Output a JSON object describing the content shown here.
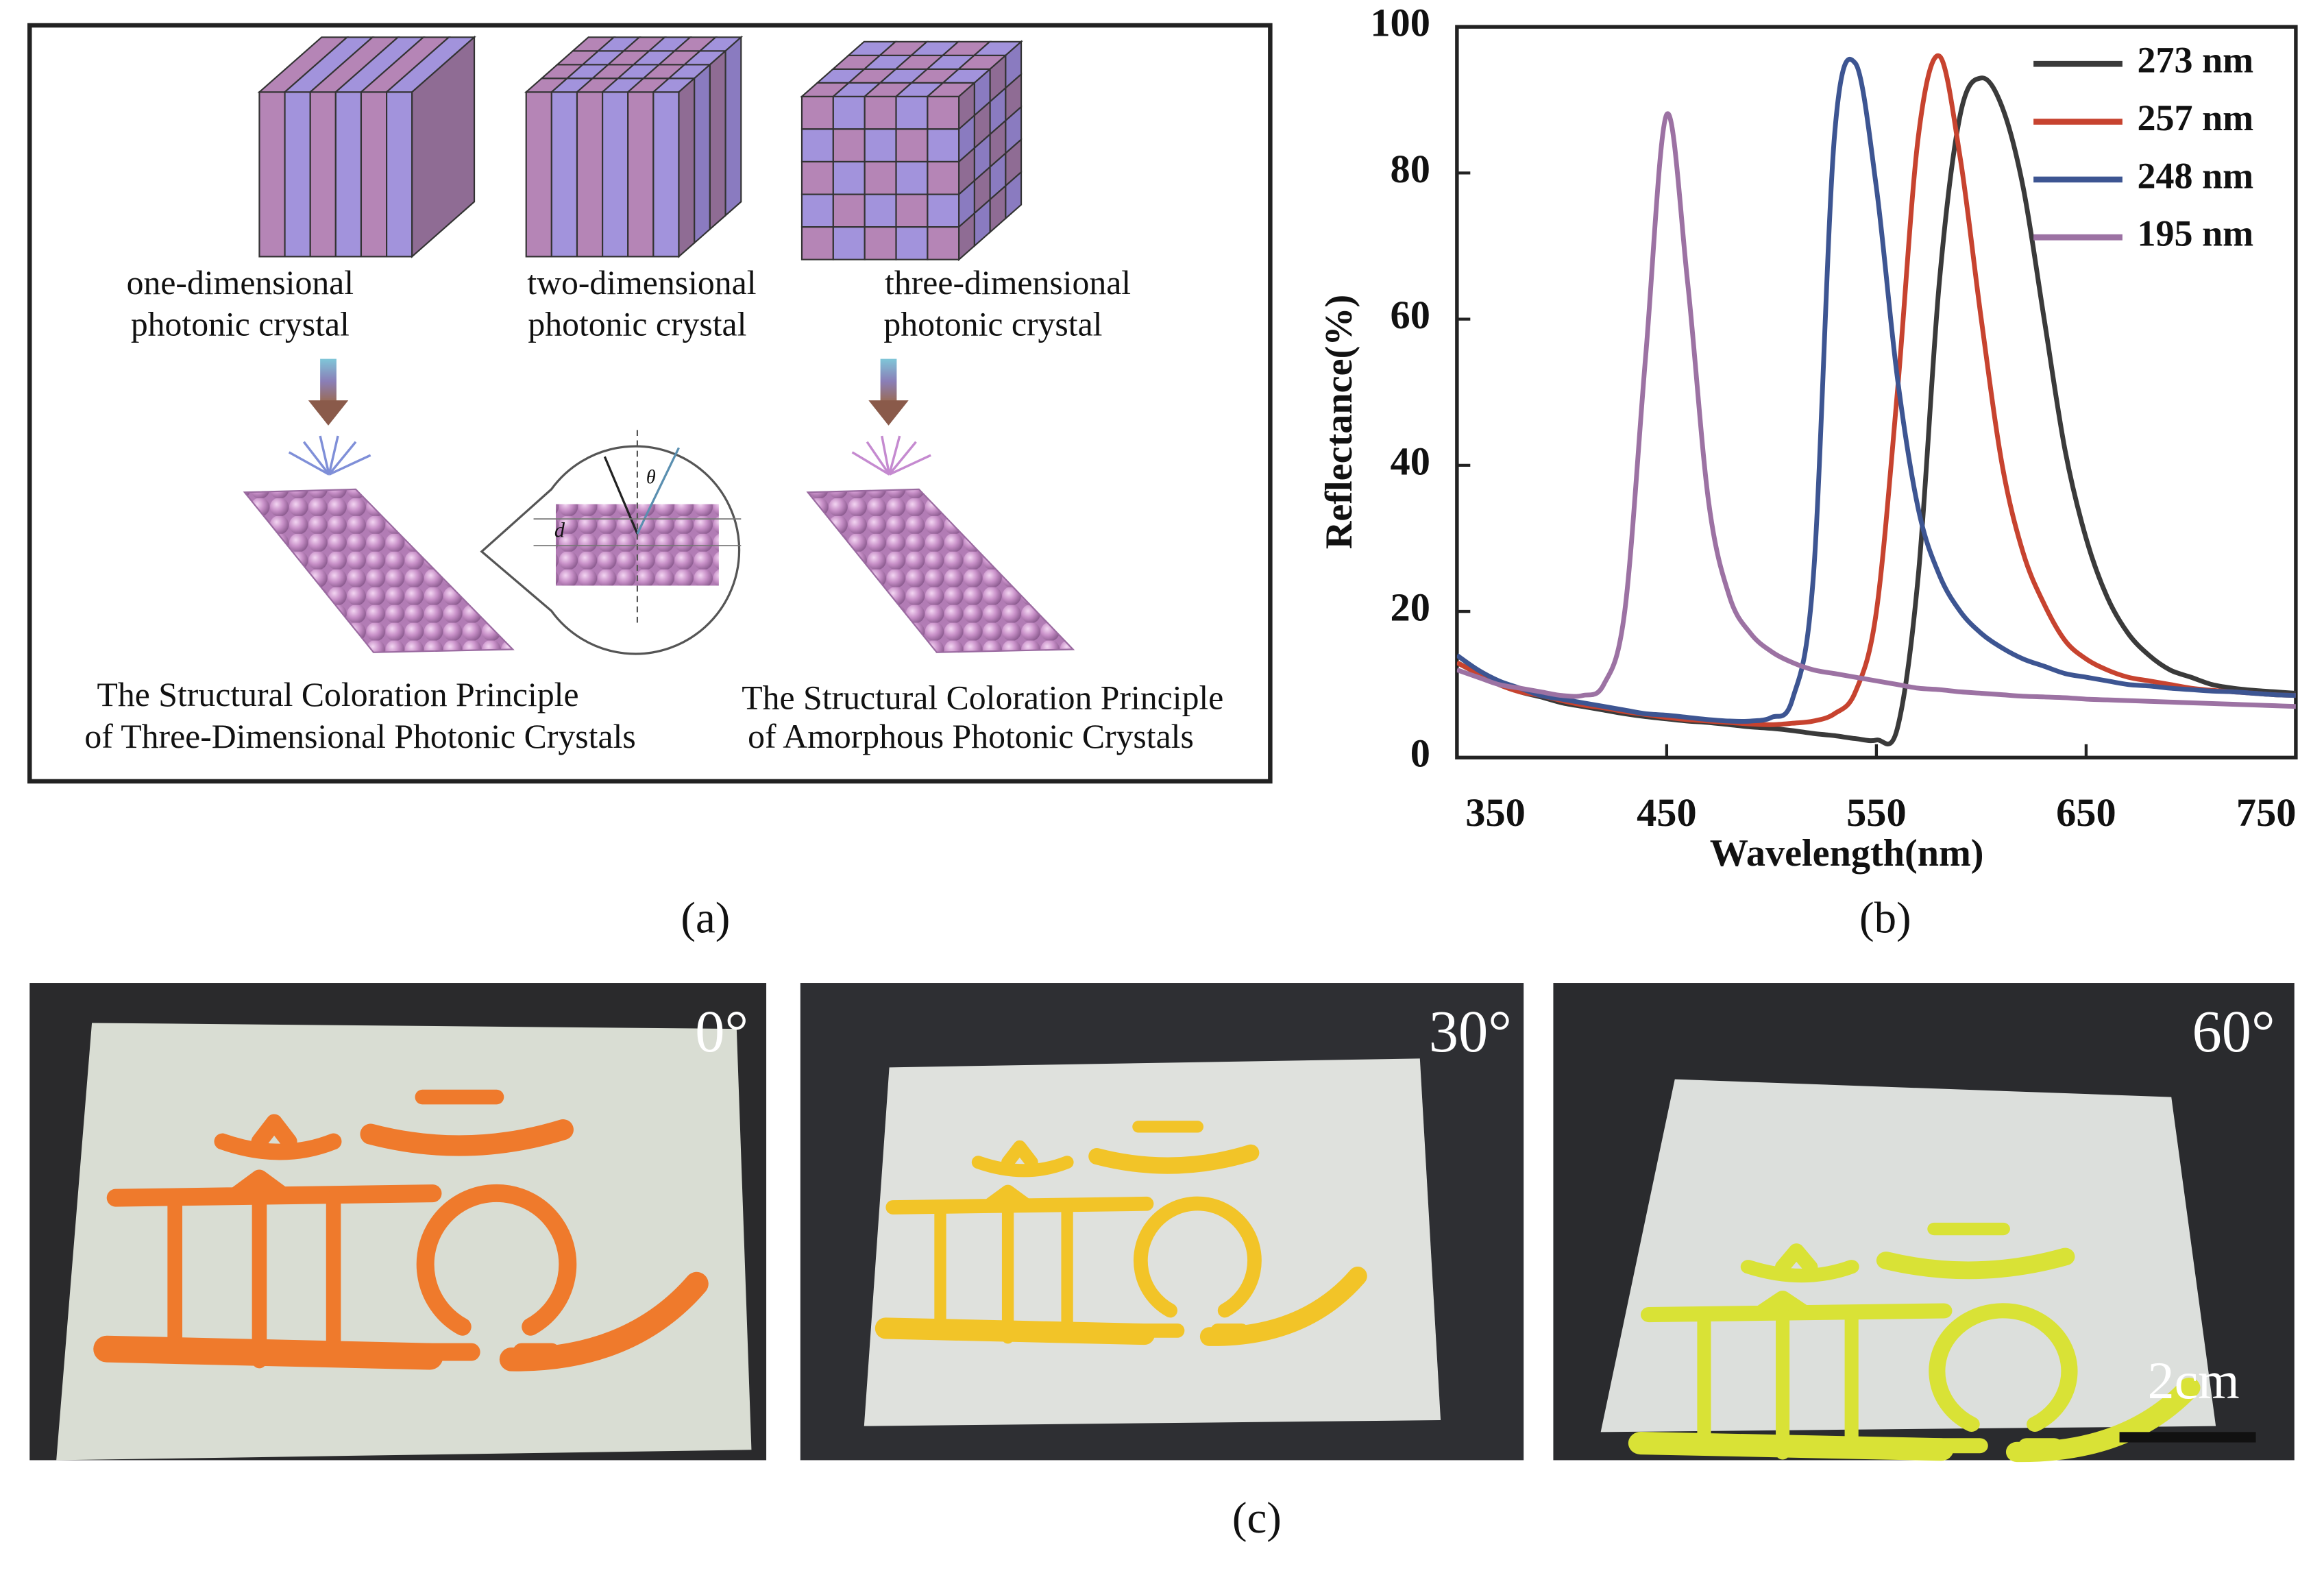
{
  "panel_a": {
    "crystal_labels": [
      [
        "one-dimensional",
        "photonic crystal"
      ],
      [
        "two-dimensional",
        "photonic crystal"
      ],
      [
        "three-dimensional",
        "photonic crystal"
      ]
    ],
    "inset_labels": [
      "d",
      "θ"
    ],
    "principles": [
      [
        "The Structural Coloration Principle",
        "of Three-Dimensional Photonic Crystals"
      ],
      [
        "The Structural Coloration Principle",
        "of Amorphous Photonic Crystals"
      ]
    ]
  },
  "chart_data": {
    "type": "line",
    "xlabel": "Wavelength(nm)",
    "ylabel": "Reflectance(%)",
    "x": [
      350,
      360,
      370,
      380,
      390,
      400,
      410,
      420,
      430,
      440,
      450,
      460,
      470,
      480,
      490,
      500,
      510,
      520,
      530,
      540,
      550,
      560,
      570,
      580,
      590,
      600,
      610,
      620,
      630,
      640,
      650,
      660,
      670,
      680,
      690,
      700,
      710,
      720,
      730,
      740,
      750
    ],
    "series": [
      {
        "name": "273 nm",
        "color": "#3a3a3a",
        "values": [
          13,
          11.5,
          10,
          9,
          8.3,
          7.5,
          7,
          6.5,
          6,
          5.6,
          5.3,
          5,
          4.8,
          4.5,
          4.2,
          4,
          3.7,
          3.3,
          3,
          2.6,
          2.4,
          4,
          25,
          65,
          88,
          93,
          89,
          78,
          60,
          42,
          30,
          22,
          17,
          14,
          12,
          11,
          10,
          9.5,
          9.2,
          9,
          8.8
        ]
      },
      {
        "name": "257 nm",
        "color": "#c7432f",
        "values": [
          13,
          11.5,
          10,
          9,
          8.5,
          7.8,
          7.2,
          6.8,
          6.3,
          5.9,
          5.5,
          5.2,
          5,
          4.8,
          4.6,
          4.5,
          4.7,
          5,
          6,
          9,
          20,
          50,
          85,
          96,
          82,
          60,
          40,
          28,
          21,
          16,
          13.5,
          12,
          11,
          10.5,
          10,
          9.5,
          9.2,
          9,
          8.8,
          8.6,
          8.5
        ]
      },
      {
        "name": "248 nm",
        "color": "#3d5592",
        "values": [
          14,
          12,
          10.5,
          9.5,
          8.5,
          8,
          7.5,
          7,
          6.5,
          6,
          5.8,
          5.5,
          5.2,
          5,
          5,
          5.5,
          8,
          25,
          85,
          95,
          78,
          52,
          34,
          25,
          20,
          17,
          15,
          13.5,
          12.5,
          11.5,
          11,
          10.5,
          10,
          9.8,
          9.5,
          9.3,
          9.1,
          9,
          8.8,
          8.6,
          8.5
        ]
      },
      {
        "name": "195 nm",
        "color": "#9c72a3",
        "values": [
          12,
          11,
          10,
          9.5,
          9,
          8.5,
          8.5,
          10,
          20,
          55,
          88,
          65,
          35,
          22,
          17,
          14.5,
          13,
          12,
          11.5,
          11,
          10.5,
          10,
          9.5,
          9.3,
          9,
          8.8,
          8.6,
          8.4,
          8.3,
          8.2,
          8,
          7.9,
          7.8,
          7.7,
          7.6,
          7.5,
          7.4,
          7.3,
          7.2,
          7.1,
          7
        ]
      }
    ],
    "xlim": [
      350,
      750
    ],
    "xticks": [
      350,
      450,
      550,
      650,
      750
    ],
    "ylim": [
      0,
      100
    ],
    "yticks": [
      0,
      20,
      40,
      60,
      80,
      100
    ],
    "legend": "upper right"
  },
  "panel_c": {
    "angles": [
      "0°",
      "30°",
      "60°"
    ],
    "scale_bar": "2cm"
  },
  "panel_labels": [
    "(a)",
    "(b)",
    "(c)"
  ]
}
